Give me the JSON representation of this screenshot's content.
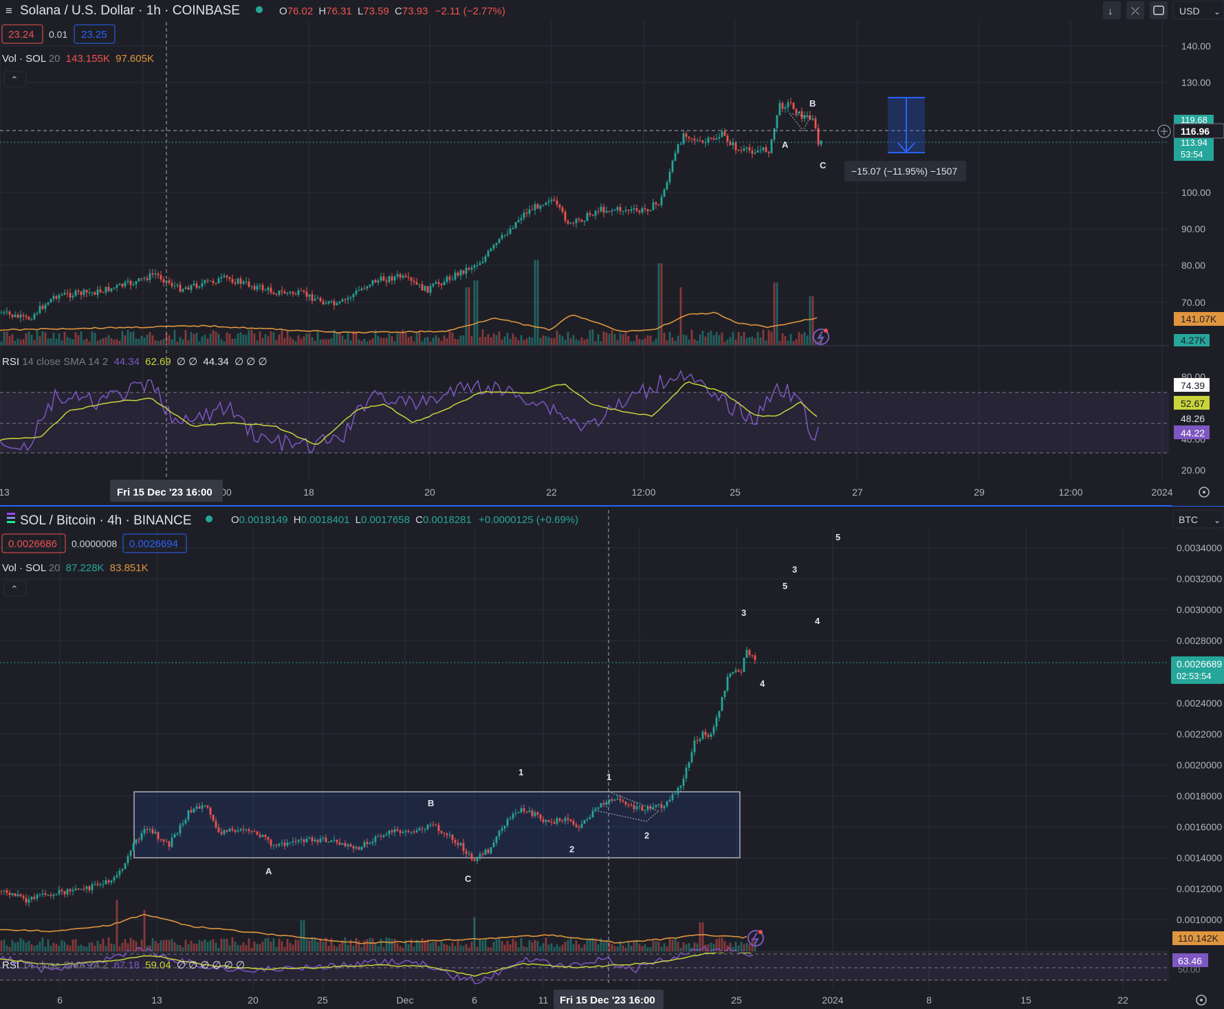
{
  "top": {
    "symbol": "Solana / U.S. Dollar · 1h · COINBASE",
    "ohlc": {
      "o": "76.02",
      "h": "76.31",
      "l": "73.59",
      "c": "73.93",
      "chg": "−2.11 (−2.77%)"
    },
    "bid": "23.24",
    "spread": "0.01",
    "ask": "23.25",
    "vol_label": "Vol · SOL",
    "vol_len": "20",
    "vol_v1": "143.155K",
    "vol_v2": "97.605K",
    "currency": "USD",
    "price_ticks": [
      "140.00",
      "130.00",
      "100.00",
      "90.00",
      "80.00",
      "70.00"
    ],
    "tag_last": "116.96",
    "tag_hi": "119.68",
    "tag_price": "113.94",
    "tag_time": "53:54",
    "tag_vol": "141.07K",
    "tag_vol2": "4.27K",
    "measure": "−15.07 (−11.95%) −1507",
    "waves": [
      "A",
      "B",
      "C"
    ],
    "rsi_label": "RSI",
    "rsi_params": "14 close SMA 14 2",
    "rsi_v1": "44.34",
    "rsi_v2": "62.69",
    "rsi_rest1": "∅ ∅",
    "rsi_v3": "44.34",
    "rsi_rest2": "∅ ∅ ∅",
    "rsi_ticks": [
      "80.00",
      "40.00",
      "20.00"
    ],
    "rsi_tags": [
      "74.39",
      "52.67",
      "48.26",
      "44.22"
    ],
    "time_ticks": [
      "13",
      "00",
      "18",
      "20",
      "22",
      "12:00",
      "25",
      "27",
      "29",
      "12:00",
      "2024"
    ],
    "crosshair_time": "Fri 15 Dec '23   16:00"
  },
  "bottom": {
    "symbol": "SOL / Bitcoin · 4h · BINANCE",
    "ohlc": {
      "o": "0.0018149",
      "h": "0.0018401",
      "l": "0.0017658",
      "c": "0.0018281",
      "chg": "+0.0000125 (+0.69%)"
    },
    "bid": "0.0026686",
    "spread": "0.0000008",
    "ask": "0.0026694",
    "vol_label": "Vol · SOL",
    "vol_len": "20",
    "vol_v1": "87.228K",
    "vol_v2": "83.851K",
    "currency": "BTC",
    "price_ticks": [
      "0.0034000",
      "0.0032000",
      "0.0030000",
      "0.0028000",
      "0.0024000",
      "0.0022000",
      "0.0020000",
      "0.0018000",
      "0.0016000",
      "0.0014000",
      "0.0012000",
      "0.0010000"
    ],
    "tag_price": "0.0026689",
    "tag_time": "02:53:54",
    "tag_vol": "110.142K",
    "tag_rsi": "63.46",
    "rsi_tick": "50.00",
    "waves": {
      "A": "A",
      "B": "B",
      "C": "C",
      "w1": "1",
      "w2": "2",
      "w3": "3",
      "w4": "4",
      "w5": "5"
    },
    "rsi_label": "RSI",
    "rsi_params": "14 close SMA 14 2",
    "rsi_v1": "67.18",
    "rsi_v2": "59.04",
    "rsi_rest": "∅ ∅ ∅ ∅ ∅ ∅",
    "time_ticks": [
      "6",
      "13",
      "20",
      "25",
      "Dec",
      "6",
      "11",
      "25",
      "2024",
      "8",
      "15",
      "22"
    ],
    "crosshair_time": "Fri 15 Dec '23   16:00"
  },
  "colors": {
    "bg": "#1e1f26",
    "up": "#26a69a",
    "down": "#ef5350",
    "rsi": "#7e57c2",
    "sma": "#c9d43a",
    "vol_ma": "#e0963f",
    "accent": "#2962ff"
  }
}
